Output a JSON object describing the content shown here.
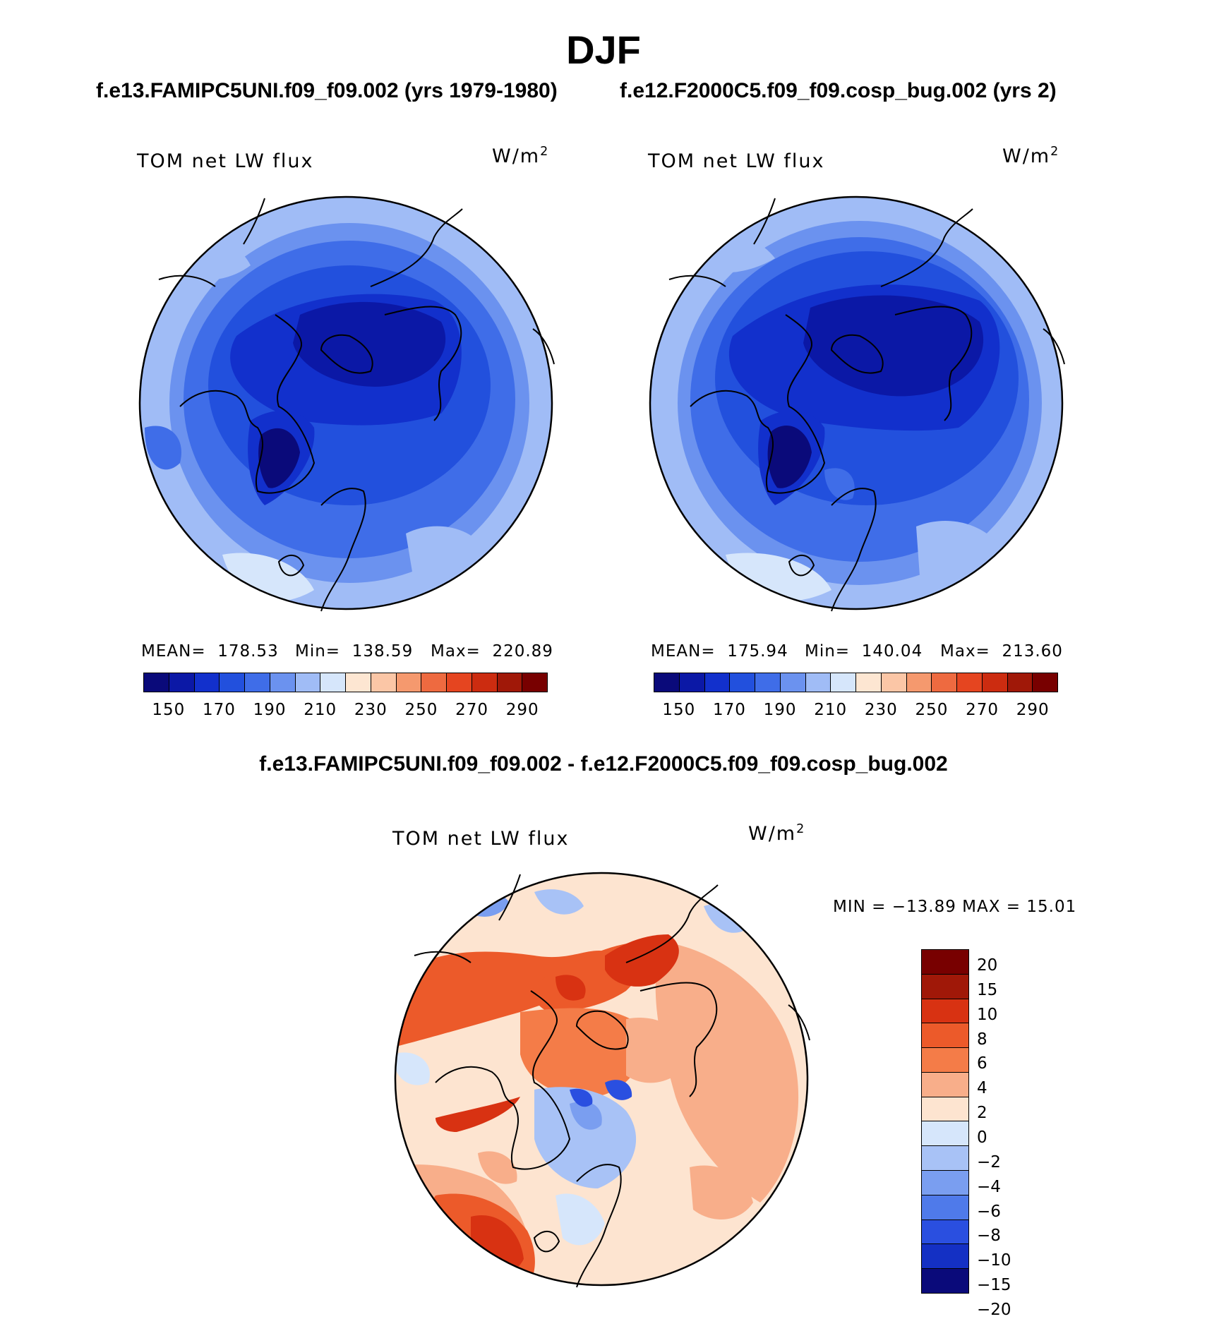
{
  "figure": {
    "title": "DJF",
    "left_case": "f.e13.FAMIPC5UNI.f09_f09.002 (yrs 1979-1980)",
    "right_case": "f.e12.F2000C5.f09_f09.cosp_bug.002 (yrs 2)",
    "diff_title": "f.e13.FAMIPC5UNI.f09_f09.002 - f.e12.F2000C5.f09_f09.cosp_bug.002"
  },
  "panels": {
    "left": {
      "variable": "TOM net LW flux",
      "units": "W/m",
      "units_sup": "2",
      "mean_label": "MEAN=",
      "mean": "178.53",
      "min_label": "Min=",
      "min": "138.59",
      "max_label": "Max=",
      "max": "220.89"
    },
    "right": {
      "variable": "TOM net LW flux",
      "units": "W/m",
      "units_sup": "2",
      "mean_label": "MEAN=",
      "mean": "175.94",
      "min_label": "Min=",
      "min": "140.04",
      "max_label": "Max=",
      "max": "213.60"
    },
    "diff": {
      "variable": "TOM net LW flux",
      "units": "W/m",
      "units_sup": "2",
      "minmax_text": "MIN = −13.89 MAX =   15.01"
    }
  },
  "colorbar_abs": {
    "colors": [
      "#0a0a7a",
      "#0b18a6",
      "#1230cc",
      "#2250dd",
      "#3f6de8",
      "#6b92ef",
      "#a0bcf6",
      "#d6e6fb",
      "#fde6d2",
      "#fbc6a6",
      "#f5996e",
      "#ee6a40",
      "#e54520",
      "#cc2c10",
      "#a01808",
      "#780000"
    ],
    "labels": [
      "150",
      "170",
      "190",
      "210",
      "230",
      "250",
      "270",
      "290"
    ]
  },
  "colorbar_diff": {
    "colors": [
      "#780000",
      "#a01808",
      "#d83212",
      "#ec5a2a",
      "#f47c48",
      "#f8ae8a",
      "#fde4d0",
      "#d6e6fb",
      "#a8c2f6",
      "#7a9ef0",
      "#4f7aea",
      "#2a4fe0",
      "#1430c4",
      "#0a0a7a"
    ],
    "labels": [
      "20",
      "15",
      "10",
      "8",
      "6",
      "4",
      "2",
      "0",
      "−2",
      "−4",
      "−6",
      "−8",
      "−10",
      "−15",
      "−20"
    ]
  }
}
